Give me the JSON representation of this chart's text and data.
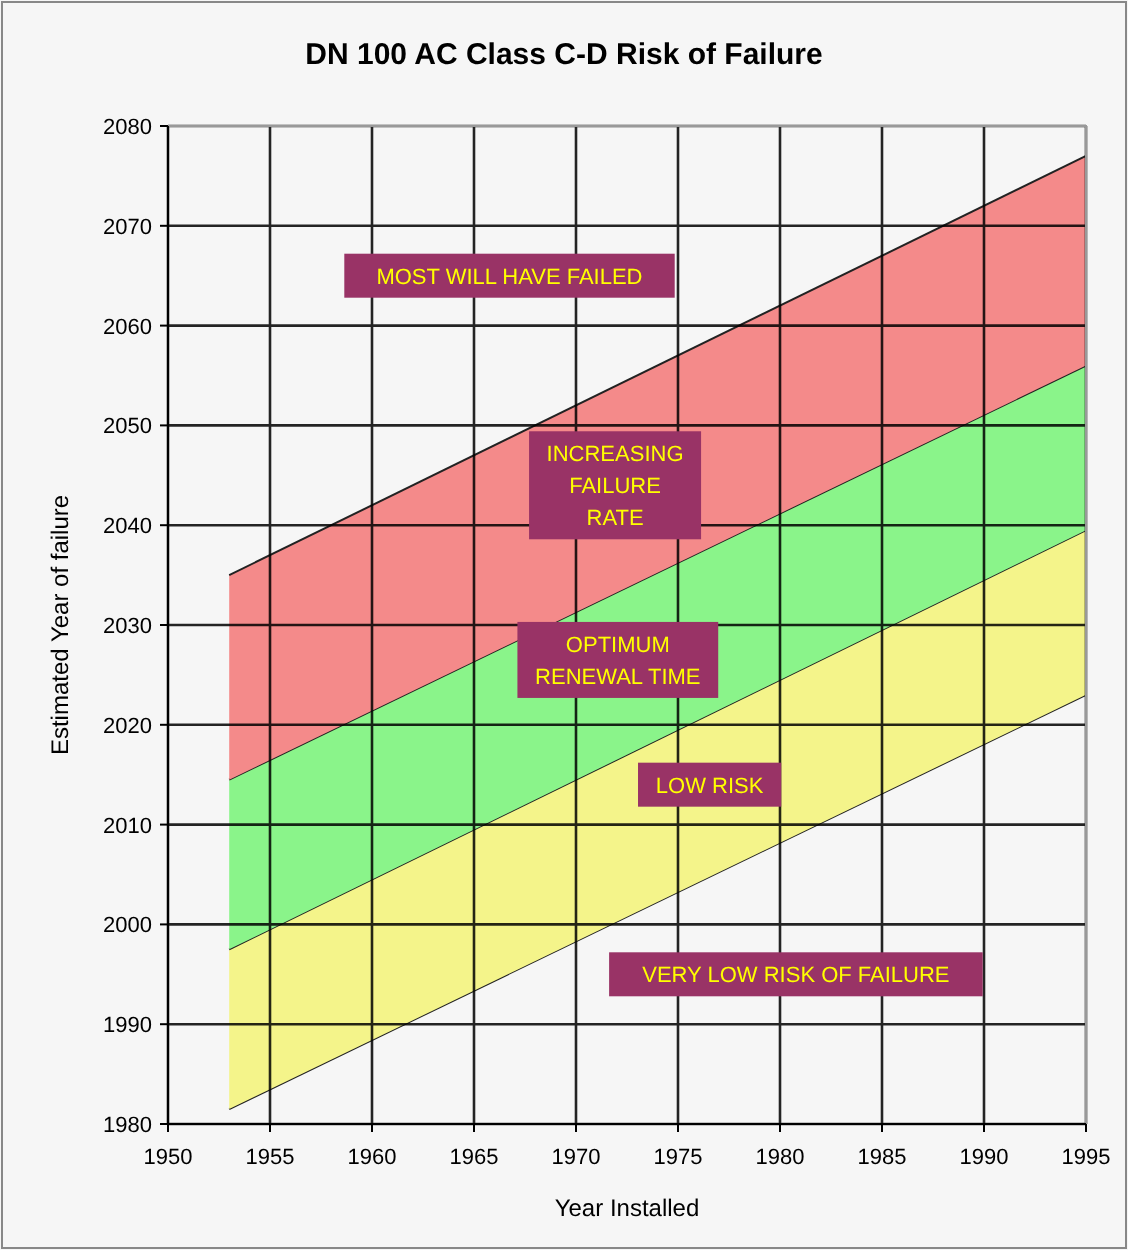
{
  "chart_data": {
    "type": "area",
    "title": "DN 100 AC Class C-D Risk of Failure",
    "xlabel": "Year Installed",
    "ylabel": "Estimated Year of failure",
    "x": [
      1953,
      1995
    ],
    "series": [
      {
        "type": "line",
        "color": "#222222",
        "values": [
          1981.5,
          2023
        ]
      },
      {
        "color": "#f4f48a",
        "values": [
          1997.5,
          2039.5
        ]
      },
      {
        "color": "#8af48a",
        "values": [
          2014.5,
          2056
        ]
      },
      {
        "color": "#f48a8a",
        "values": [
          2035,
          2077
        ]
      }
    ],
    "xlim": [
      1950,
      1995
    ],
    "xticks": [
      1950,
      1955,
      1960,
      1965,
      1970,
      1975,
      1980,
      1985,
      1990,
      1995
    ],
    "ylim": [
      1980,
      2080
    ],
    "yticks": [
      1980,
      1990,
      2000,
      2010,
      2020,
      2030,
      2040,
      2050,
      2060,
      2070,
      2080
    ],
    "grid": true,
    "annotations": [
      "MOST WILL HAVE FAILED",
      "INCREASING\nFAILURE\nRATE",
      "OPTIMUM\nRENEWAL TIME",
      "LOW RISK",
      "VERY LOW RISK OF FAILURE"
    ]
  }
}
